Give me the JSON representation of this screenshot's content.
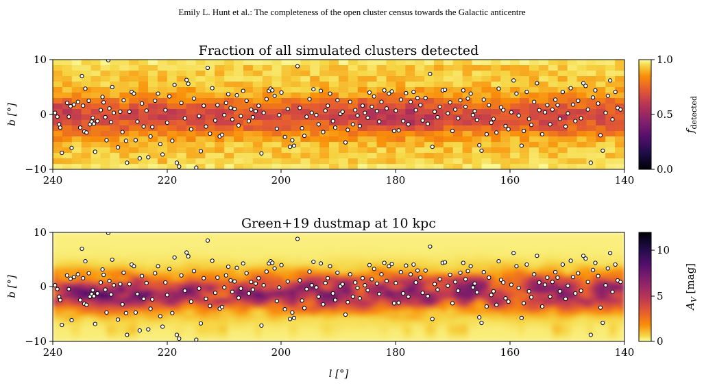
{
  "page_header": "Emily L. Hunt  et al.: The completeness of the open cluster census towards the Galactic anticentre",
  "chart_data": [
    {
      "type": "heatmap",
      "title": "Fraction of all simulated clusters detected",
      "xlabel": "",
      "ylabel": "b [°]",
      "xlim": [
        240,
        140
      ],
      "ylim": [
        -10,
        10
      ],
      "xticks": [
        "240",
        "220",
        "200",
        "180",
        "160",
        "140"
      ],
      "yticks": [
        "10",
        "0",
        "−10"
      ],
      "colorbar": {
        "label": "f_detected",
        "label_main": "f",
        "label_sub": "detected",
        "ticks": [
          "1.0",
          "0.5",
          "0.0"
        ],
        "range": [
          0.0,
          1.0
        ],
        "cmap": "inferno"
      },
      "grid": false
    },
    {
      "type": "heatmap",
      "title": "Green+19 dustmap at 10 kpc",
      "xlabel": "l [°]",
      "ylabel": "b [°]",
      "xlim": [
        240,
        140
      ],
      "ylim": [
        -10,
        10
      ],
      "xticks": [
        "240",
        "220",
        "200",
        "180",
        "160",
        "140"
      ],
      "yticks": [
        "10",
        "0",
        "−10"
      ],
      "colorbar": {
        "label": "A_V [mag]",
        "label_main": "A",
        "label_sub": "V",
        "label_unit": " [mag]",
        "ticks": [
          "10",
          "5",
          "0"
        ],
        "range": [
          0,
          12
        ],
        "cmap": "inferno_r"
      },
      "grid": false
    }
  ],
  "clusters": {
    "marker": "white circle, black edge",
    "points": [
      [
        239.6,
        0.3
      ],
      [
        239.2,
        -0.4
      ],
      [
        238.9,
        -1.8
      ],
      [
        238.7,
        -2.4
      ],
      [
        238.4,
        -7.0
      ],
      [
        237.5,
        2.1
      ],
      [
        237.2,
        -0.4
      ],
      [
        236.9,
        1.5
      ],
      [
        236.7,
        -6.1
      ],
      [
        236.3,
        1.8
      ],
      [
        235.6,
        2.3
      ],
      [
        235.2,
        -2.4
      ],
      [
        234.9,
        7.0
      ],
      [
        234.7,
        1.6
      ],
      [
        234.5,
        -3.1
      ],
      [
        234.3,
        4.7
      ],
      [
        234.1,
        -3.3
      ],
      [
        233.7,
        2.5
      ],
      [
        233.5,
        -1.8
      ],
      [
        233.2,
        -1.3
      ],
      [
        233.0,
        -0.6
      ],
      [
        232.8,
        -1.7
      ],
      [
        232.6,
        -6.8
      ],
      [
        232.2,
        -1.2
      ],
      [
        231.6,
        0.8
      ],
      [
        231.3,
        3.2
      ],
      [
        231.1,
        2.2
      ],
      [
        230.8,
        -0.5
      ],
      [
        230.6,
        -4.7
      ],
      [
        230.3,
        9.9
      ],
      [
        230.1,
        1.1
      ],
      [
        229.8,
        -1.4
      ],
      [
        229.6,
        5.0
      ],
      [
        229.3,
        0.3
      ],
      [
        228.6,
        -6.0
      ],
      [
        228.2,
        0.5
      ],
      [
        227.8,
        -3.2
      ],
      [
        227.6,
        2.6
      ],
      [
        227.2,
        -4.8
      ],
      [
        227.0,
        -8.8
      ],
      [
        226.6,
        0.5
      ],
      [
        226.2,
        4.1
      ],
      [
        225.8,
        3.8
      ],
      [
        225.5,
        -4.7
      ],
      [
        225.2,
        -1.3
      ],
      [
        224.8,
        -8.0
      ],
      [
        224.4,
        2.0
      ],
      [
        224.1,
        -2.2
      ],
      [
        223.6,
        0.7
      ],
      [
        223.3,
        -7.8
      ],
      [
        222.9,
        -4.0
      ],
      [
        222.6,
        -2.3
      ],
      [
        222.1,
        2.5
      ],
      [
        221.6,
        3.8
      ],
      [
        221.2,
        -5.4
      ],
      [
        220.8,
        -7.3
      ],
      [
        220.3,
        0.8
      ],
      [
        220.0,
        -1.5
      ],
      [
        219.6,
        3.3
      ],
      [
        219.1,
        -4.8
      ],
      [
        218.7,
        5.4
      ],
      [
        218.3,
        -8.8
      ],
      [
        217.9,
        -9.5
      ],
      [
        217.5,
        2.1
      ],
      [
        216.9,
        -0.7
      ],
      [
        216.6,
        6.3
      ],
      [
        216.3,
        5.6
      ],
      [
        215.8,
        -2.7
      ],
      [
        215.3,
        2.9
      ],
      [
        214.9,
        -9.7
      ],
      [
        214.4,
        -0.3
      ],
      [
        214.1,
        -6.7
      ],
      [
        213.6,
        1.6
      ],
      [
        213.2,
        -2.2
      ],
      [
        212.9,
        8.5
      ],
      [
        212.5,
        -3.5
      ],
      [
        212.1,
        4.8
      ],
      [
        211.6,
        -1.1
      ],
      [
        211.2,
        1.7
      ],
      [
        210.8,
        -4.0
      ],
      [
        210.4,
        -3.7
      ],
      [
        210.0,
        -0.1
      ],
      [
        209.7,
        2.1
      ],
      [
        209.3,
        3.7
      ],
      [
        208.9,
        1.2
      ],
      [
        208.6,
        -0.9
      ],
      [
        208.2,
        1.0
      ],
      [
        207.8,
        3.5
      ],
      [
        207.5,
        -2.0
      ],
      [
        207.1,
        -0.3
      ],
      [
        206.7,
        4.3
      ],
      [
        206.1,
        2.5
      ],
      [
        205.7,
        -1.2
      ],
      [
        205.3,
        0.9
      ],
      [
        205.0,
        -0.5
      ],
      [
        204.5,
        0.6
      ],
      [
        204.0,
        1.6
      ],
      [
        203.5,
        -7.1
      ],
      [
        203.1,
        0.3
      ],
      [
        202.6,
        2.8
      ],
      [
        202.2,
        4.3
      ],
      [
        201.9,
        4.7
      ],
      [
        201.6,
        4.4
      ],
      [
        201.2,
        3.4
      ],
      [
        200.8,
        -2.6
      ],
      [
        200.4,
        -0.1
      ],
      [
        200.0,
        4.0
      ],
      [
        199.4,
        -4.1
      ],
      [
        198.9,
        1.0
      ],
      [
        198.5,
        -5.9
      ],
      [
        198.1,
        -4.7
      ],
      [
        197.8,
        -5.7
      ],
      [
        197.2,
        8.8
      ],
      [
        196.8,
        1.2
      ],
      [
        196.4,
        -2.5
      ],
      [
        196.0,
        -3.9
      ],
      [
        195.6,
        -0.4
      ],
      [
        195.1,
        2.8
      ],
      [
        194.7,
        0.3
      ],
      [
        194.4,
        4.6
      ],
      [
        193.9,
        -0.1
      ],
      [
        193.5,
        -1.8
      ],
      [
        193.1,
        4.3
      ],
      [
        192.7,
        -3.2
      ],
      [
        192.3,
        0.7
      ],
      [
        191.9,
        1.6
      ],
      [
        191.5,
        3.8
      ],
      [
        191.0,
        -1.2
      ],
      [
        190.6,
        -2.4
      ],
      [
        190.2,
        2.6
      ],
      [
        189.7,
        0.1
      ],
      [
        189.3,
        0.5
      ],
      [
        188.8,
        -5.1
      ],
      [
        188.4,
        -2.8
      ],
      [
        188.0,
        2.3
      ],
      [
        187.5,
        -1.8
      ],
      [
        187.1,
        0.8
      ],
      [
        186.7,
        -0.2
      ],
      [
        186.3,
        -2.1
      ],
      [
        185.8,
        1.6
      ],
      [
        185.4,
        0.3
      ],
      [
        184.9,
        -0.6
      ],
      [
        184.6,
        4.0
      ],
      [
        184.2,
        1.4
      ],
      [
        183.8,
        3.3
      ],
      [
        183.3,
        0.6
      ],
      [
        182.9,
        -1.3
      ],
      [
        182.5,
        2.3
      ],
      [
        182.0,
        4.4
      ],
      [
        181.6,
        1.1
      ],
      [
        181.2,
        3.8
      ],
      [
        180.7,
        4.2
      ],
      [
        180.3,
        -3.0
      ],
      [
        180.0,
        0.7
      ],
      [
        179.5,
        -2.9
      ],
      [
        179.1,
        2.7
      ],
      [
        178.7,
        -1.2
      ],
      [
        178.2,
        3.9
      ],
      [
        177.8,
        -1.8
      ],
      [
        177.4,
        2.3
      ],
      [
        176.9,
        4.1
      ],
      [
        176.5,
        0.8
      ],
      [
        176.2,
        3.0
      ],
      [
        175.7,
        1.7
      ],
      [
        175.3,
        -1.1
      ],
      [
        174.8,
        3.0
      ],
      [
        174.4,
        -1.7
      ],
      [
        174.0,
        7.4
      ],
      [
        173.6,
        -5.9
      ],
      [
        173.2,
        0.5
      ],
      [
        172.7,
        -0.5
      ],
      [
        172.3,
        1.4
      ],
      [
        171.8,
        4.4
      ],
      [
        171.4,
        4.5
      ],
      [
        170.9,
        0.2
      ],
      [
        170.5,
        2.2
      ],
      [
        170.1,
        -3.0
      ],
      [
        169.6,
        0.9
      ],
      [
        169.1,
        -0.7
      ],
      [
        168.7,
        2.6
      ],
      [
        168.2,
        4.4
      ],
      [
        167.8,
        1.4
      ],
      [
        167.4,
        2.9
      ],
      [
        166.9,
        3.8
      ],
      [
        166.5,
        -0.1
      ],
      [
        166.2,
        0.6
      ],
      [
        165.8,
        -1.0
      ],
      [
        165.4,
        -5.6
      ],
      [
        165.0,
        -6.6
      ],
      [
        164.6,
        2.7
      ],
      [
        164.1,
        -3.6
      ],
      [
        163.7,
        1.7
      ],
      [
        163.3,
        -1.5
      ],
      [
        162.9,
        -0.8
      ],
      [
        162.4,
        -3.3
      ],
      [
        162.0,
        4.7
      ],
      [
        161.6,
        1.3
      ],
      [
        161.2,
        0.8
      ],
      [
        160.8,
        -2.1
      ],
      [
        160.3,
        -2.7
      ],
      [
        159.8,
        0.4
      ],
      [
        159.4,
        6.2
      ],
      [
        158.9,
        3.8
      ],
      [
        158.5,
        -0.2
      ],
      [
        158.0,
        -5.7
      ],
      [
        157.6,
        -3.0
      ],
      [
        157.1,
        4.1
      ],
      [
        156.7,
        -0.8
      ],
      [
        156.3,
        -1.9
      ],
      [
        155.8,
        2.3
      ],
      [
        155.3,
        5.7
      ],
      [
        154.9,
        0.8
      ],
      [
        154.4,
        -3.6
      ],
      [
        153.9,
        0.4
      ],
      [
        153.5,
        1.7
      ],
      [
        153.0,
        -1.8
      ],
      [
        152.6,
        0.9
      ],
      [
        152.1,
        2.7
      ],
      [
        151.7,
        1.7
      ],
      [
        151.3,
        -0.8
      ],
      [
        150.8,
        4.1
      ],
      [
        150.3,
        -2.2
      ],
      [
        149.9,
        0.2
      ],
      [
        149.4,
        4.8
      ],
      [
        149.0,
        1.8
      ],
      [
        148.6,
        -1.2
      ],
      [
        148.1,
        2.5
      ],
      [
        147.6,
        -0.7
      ],
      [
        147.2,
        5.7
      ],
      [
        146.8,
        5.2
      ],
      [
        146.4,
        0.9
      ],
      [
        145.9,
        -8.8
      ],
      [
        145.5,
        3.1
      ],
      [
        145.1,
        4.4
      ],
      [
        144.6,
        2.0
      ],
      [
        144.2,
        -3.8
      ],
      [
        143.8,
        -6.6
      ],
      [
        143.3,
        0.3
      ],
      [
        142.9,
        3.4
      ],
      [
        142.5,
        6.2
      ],
      [
        142.1,
        -0.9
      ],
      [
        141.6,
        4.1
      ],
      [
        141.2,
        1.2
      ],
      [
        140.7,
        0.9
      ]
    ]
  }
}
